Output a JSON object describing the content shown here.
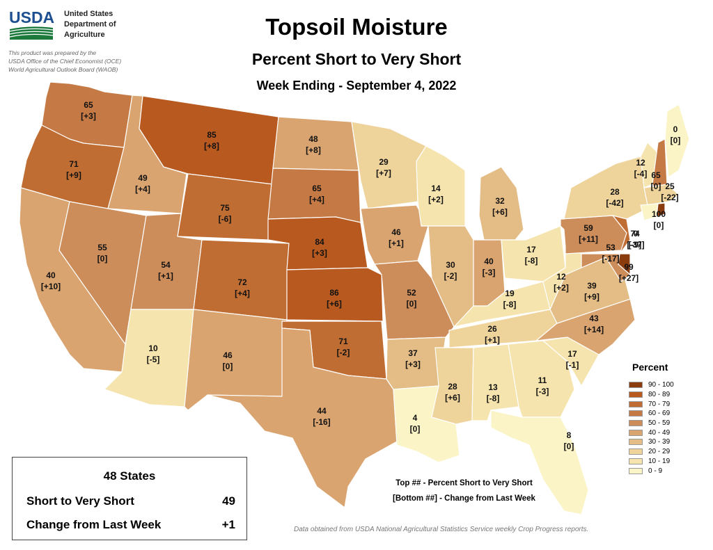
{
  "header": {
    "logo_text": "USDA",
    "agency_lines": [
      "United States",
      "Department of",
      "Agriculture"
    ],
    "credit_lines": [
      "This product was prepared by the",
      "USDA Office of the Chief Economist (OCE)",
      "World Agricultural Outlook Board (WAOB)"
    ]
  },
  "title": "Topsoil Moisture",
  "subtitle": "Percent Short to Very Short",
  "week": "Week Ending - September 4, 2022",
  "legend": {
    "title": "Percent",
    "classes": [
      {
        "label": "90 - 100",
        "color": "#8a3c0f"
      },
      {
        "label": "80 - 89",
        "color": "#b85a20"
      },
      {
        "label": "70 - 79",
        "color": "#c06d33"
      },
      {
        "label": "60 - 69",
        "color": "#c57a45"
      },
      {
        "label": "50 - 59",
        "color": "#cc8d5b"
      },
      {
        "label": "40 - 49",
        "color": "#d9a46f"
      },
      {
        "label": "30 - 39",
        "color": "#e4bc85"
      },
      {
        "label": "20 - 29",
        "color": "#eed39b"
      },
      {
        "label": "10 - 19",
        "color": "#f5e4ad"
      },
      {
        "label": "0 - 9",
        "color": "#fbf4c6"
      }
    ]
  },
  "states": [
    {
      "id": "WA",
      "value": "65",
      "change": "[+3]"
    },
    {
      "id": "OR",
      "value": "71",
      "change": "[+9]"
    },
    {
      "id": "CA",
      "value": "40",
      "change": "[+10]"
    },
    {
      "id": "ID",
      "value": "49",
      "change": "[+4]"
    },
    {
      "id": "NV",
      "value": "55",
      "change": "[0]"
    },
    {
      "id": "MT",
      "value": "85",
      "change": "[+8]"
    },
    {
      "id": "WY",
      "value": "75",
      "change": "[-6]"
    },
    {
      "id": "UT",
      "value": "54",
      "change": "[+1]"
    },
    {
      "id": "AZ",
      "value": "10",
      "change": "[-5]"
    },
    {
      "id": "CO",
      "value": "72",
      "change": "[+4]"
    },
    {
      "id": "NM",
      "value": "46",
      "change": "[0]"
    },
    {
      "id": "ND",
      "value": "48",
      "change": "[+8]"
    },
    {
      "id": "SD",
      "value": "65",
      "change": "[+4]"
    },
    {
      "id": "NE",
      "value": "84",
      "change": "[+3]"
    },
    {
      "id": "KS",
      "value": "86",
      "change": "[+6]"
    },
    {
      "id": "OK",
      "value": "71",
      "change": "[-2]"
    },
    {
      "id": "TX",
      "value": "44",
      "change": "[-16]"
    },
    {
      "id": "MN",
      "value": "29",
      "change": "[+7]"
    },
    {
      "id": "IA",
      "value": "46",
      "change": "[+1]"
    },
    {
      "id": "MO",
      "value": "52",
      "change": "[0]"
    },
    {
      "id": "AR",
      "value": "37",
      "change": "[+3]"
    },
    {
      "id": "LA",
      "value": "4",
      "change": "[0]"
    },
    {
      "id": "WI",
      "value": "14",
      "change": "[+2]"
    },
    {
      "id": "MI",
      "value": "32",
      "change": "[+6]"
    },
    {
      "id": "IL",
      "value": "30",
      "change": "[-2]"
    },
    {
      "id": "IN",
      "value": "40",
      "change": "[-3]"
    },
    {
      "id": "OH",
      "value": "17",
      "change": "[-8]"
    },
    {
      "id": "KY",
      "value": "19",
      "change": "[-8]"
    },
    {
      "id": "TN",
      "value": "26",
      "change": "[+1]"
    },
    {
      "id": "MS",
      "value": "28",
      "change": "[+6]"
    },
    {
      "id": "AL",
      "value": "13",
      "change": "[-8]"
    },
    {
      "id": "GA",
      "value": "11",
      "change": "[-3]"
    },
    {
      "id": "FL",
      "value": "8",
      "change": "[0]"
    },
    {
      "id": "SC",
      "value": "17",
      "change": "[-1]"
    },
    {
      "id": "NC",
      "value": "43",
      "change": "[+14]"
    },
    {
      "id": "VA",
      "value": "39",
      "change": "[+9]"
    },
    {
      "id": "WV",
      "value": "12",
      "change": "[+2]"
    },
    {
      "id": "PA",
      "value": "59",
      "change": "[+11]"
    },
    {
      "id": "NY",
      "value": "28",
      "change": "[-42]"
    },
    {
      "id": "VT",
      "value": "12",
      "change": "[-4]"
    },
    {
      "id": "NH",
      "value": "65",
      "change": "[0]"
    },
    {
      "id": "ME",
      "value": "0",
      "change": "[0]"
    },
    {
      "id": "MA",
      "value": "25",
      "change": "[-22]"
    },
    {
      "id": "CT",
      "value": "0",
      "change": "[-37]"
    },
    {
      "id": "RI",
      "value": "100",
      "change": "[0]"
    },
    {
      "id": "NJ",
      "value": "74",
      "change": "[-9]"
    },
    {
      "id": "MD",
      "value": "53",
      "change": "[-17]"
    },
    {
      "id": "DE",
      "value": "99",
      "change": "[+27]"
    }
  ],
  "summary": {
    "title": "48 States",
    "row1_label": "Short to Very Short",
    "row1_value": "49",
    "row2_label": "Change from Last Week",
    "row2_value": "+1"
  },
  "key_lines": [
    "Top ## - Percent Short to Very Short",
    "[Bottom ##] - Change from Last Week"
  ],
  "source": "Data obtained from USDA National Agricultural Statistics Service weekly Crop Progress reports."
}
